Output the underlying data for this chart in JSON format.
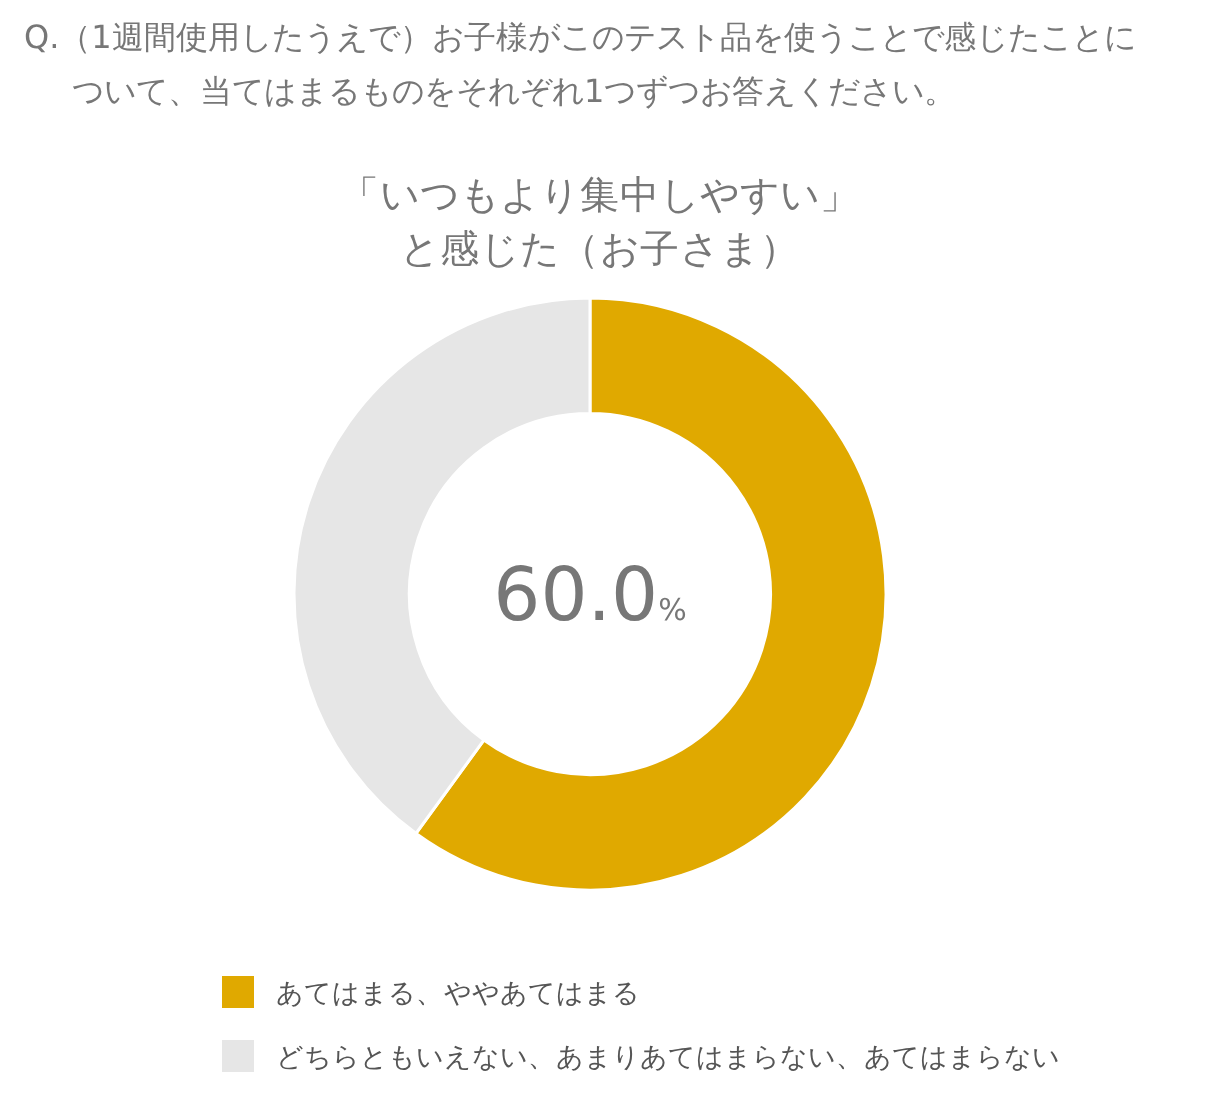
{
  "chart_data": {
    "type": "donut",
    "title": "Q.（1週間使用したうえで）お子様がこのテスト品を使うことで感じたことについて、当てはまるものをそれぞれ1つずつお答えください。",
    "subtitle": "「いつもより集中しやすい」と感じた（お子さま）",
    "categories": [
      "あてはまる、ややあてはまる",
      "どちらともいえない、あまりあてはまらない、あてはまらない"
    ],
    "values": [
      60.0,
      40.0
    ],
    "colors": [
      "#e0a900",
      "#e6e6e6"
    ],
    "value_labels": [
      "60.0%",
      null
    ],
    "legend": "bottom"
  }
}
